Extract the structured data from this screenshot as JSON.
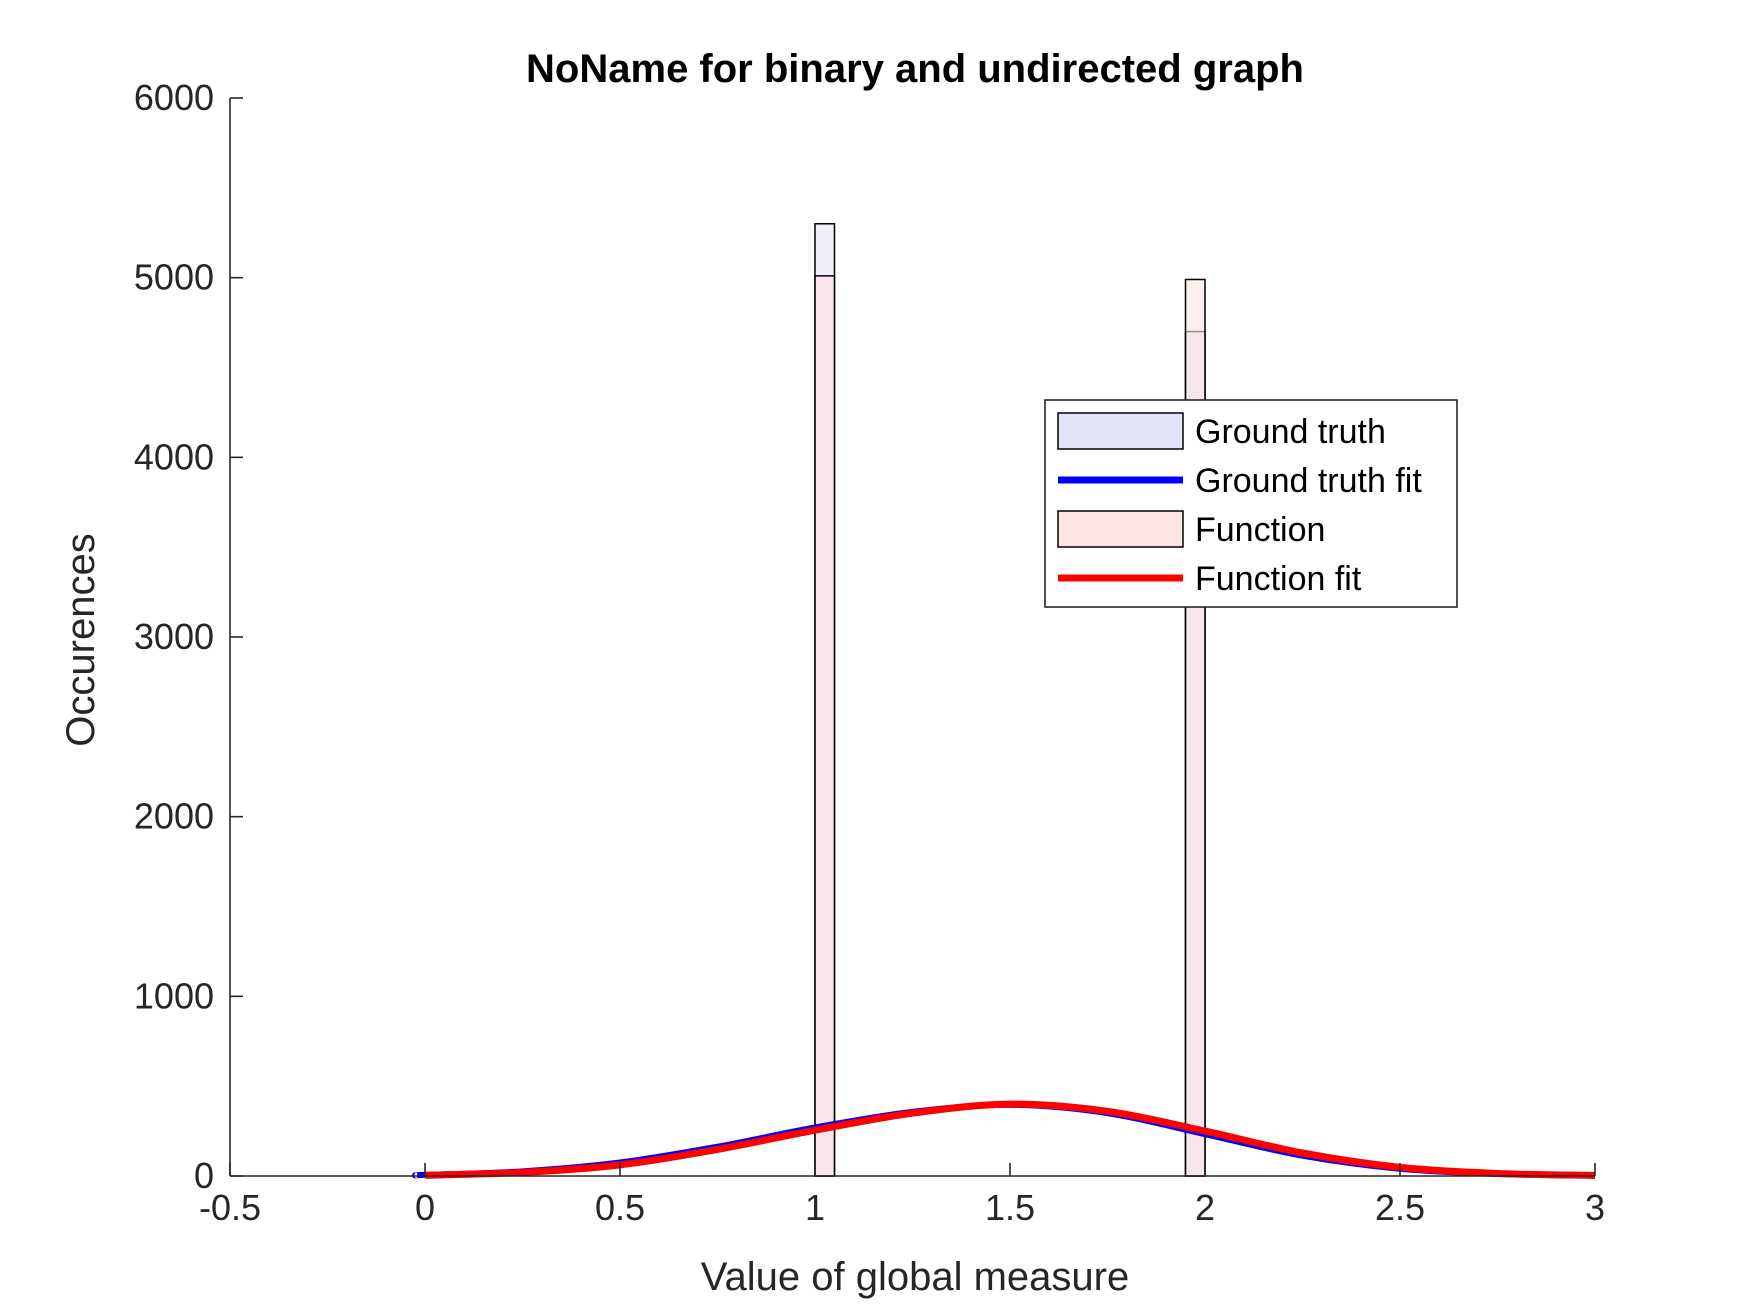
{
  "chart_data": {
    "type": "bar",
    "title": "NoName for binary and undirected graph",
    "xlabel": "Value of global measure",
    "ylabel": "Occurences",
    "xlim": [
      -0.5,
      3
    ],
    "ylim": [
      0,
      6000
    ],
    "xticks": [
      "-0.5",
      "0",
      "0.5",
      "1",
      "1.5",
      "2",
      "2.5",
      "3"
    ],
    "xtick_values": [
      -0.5,
      0,
      0.5,
      1,
      1.5,
      2,
      2.5,
      3
    ],
    "yticks": [
      "0",
      "1000",
      "2000",
      "3000",
      "4000",
      "5000",
      "6000"
    ],
    "ytick_values": [
      0,
      1000,
      2000,
      3000,
      4000,
      5000,
      6000
    ],
    "grid": false,
    "legend_position": "upper-right",
    "histograms": [
      {
        "name": "Ground truth",
        "color": "#e3e3fa",
        "bins": [
          {
            "x0": 1.0,
            "x1": 1.05,
            "count": 5300
          },
          {
            "x0": 1.95,
            "x1": 2.0,
            "count": 4700
          }
        ]
      },
      {
        "name": "Function",
        "color": "#fde3e3",
        "bins": [
          {
            "x0": 1.0,
            "x1": 1.05,
            "count": 5010
          },
          {
            "x0": 1.95,
            "x1": 2.0,
            "count": 4990
          }
        ]
      }
    ],
    "fits": [
      {
        "name": "Ground truth fit",
        "color": "#0000ff",
        "x": [
          -0.02,
          0.0,
          0.25,
          0.5,
          0.75,
          1.0,
          1.25,
          1.5,
          1.75,
          2.0,
          2.25,
          2.5,
          2.75,
          3.0
        ],
        "y": [
          4,
          6,
          26,
          75,
          163,
          270,
          357,
          396,
          350,
          233,
          113,
          40,
          11,
          3
        ]
      },
      {
        "name": "Function fit",
        "color": "#ff0000",
        "x": [
          0.0,
          0.25,
          0.5,
          0.75,
          1.0,
          1.25,
          1.5,
          1.75,
          2.0,
          2.25,
          2.5,
          2.75,
          3.0
        ],
        "y": [
          4,
          20,
          62,
          148,
          255,
          350,
          400,
          360,
          250,
          128,
          48,
          14,
          3
        ]
      }
    ],
    "legend": [
      {
        "label": "Ground truth",
        "kind": "patch",
        "color": "#e3e3fa"
      },
      {
        "label": "Ground truth fit",
        "kind": "line",
        "color": "#0000ff"
      },
      {
        "label": "Function",
        "kind": "patch",
        "color": "#fde3e3"
      },
      {
        "label": "Function fit",
        "kind": "line",
        "color": "#ff0000"
      }
    ]
  }
}
